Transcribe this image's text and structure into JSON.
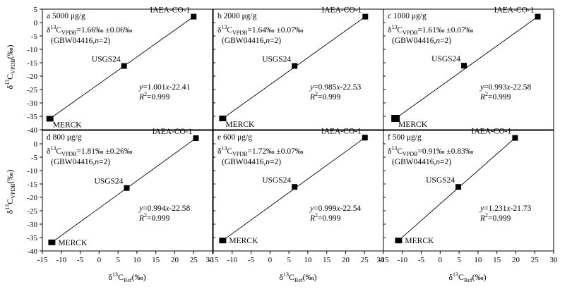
{
  "chart_data": [
    {
      "id": "a",
      "type": "scatter",
      "panel_label": "a",
      "title": "5000 μg/g",
      "points": [
        {
          "label": "IAEA-CO-1",
          "x": 25.0,
          "y": 2.2,
          "label_pos": "left-top"
        },
        {
          "label": "USGS24",
          "x": 6.6,
          "y": -16.2,
          "label_pos": "left-top"
        },
        {
          "label": "MERCK",
          "x": -13.0,
          "y": -35.9,
          "label_pos": "right-bottom"
        }
      ],
      "fit": {
        "slope": 1.001,
        "intercept": -22.41,
        "r2": 0.999,
        "x_range": [
          -13.0,
          25.0
        ]
      },
      "annotations": {
        "delta_symbol": "δ",
        "delta_sup": "13",
        "delta_c": "C",
        "delta_sub": "VPDB",
        "delta_value": "=1.66‰ ±0.06‰",
        "sample_prefix": "(GBW04416,",
        "sample_n": "n",
        "sample_suffix": "=2)",
        "eq_y": "y",
        "eq_mid": "=1.001",
        "eq_x": "x",
        "eq_tail": "-22.41",
        "r2_r": "R",
        "r2_sup": "2",
        "r2_tail": "=0.999"
      }
    },
    {
      "id": "b",
      "type": "scatter",
      "panel_label": "b",
      "title": "2000 μg/g",
      "points": [
        {
          "label": "IAEA-CO-1",
          "x": 25.2,
          "y": 2.2,
          "label_pos": "left-top"
        },
        {
          "label": "USGS24",
          "x": 6.5,
          "y": -16.2,
          "label_pos": "left-top"
        },
        {
          "label": "MERCK",
          "x": -12.5,
          "y": -35.8,
          "label_pos": "right-bottom"
        }
      ],
      "fit": {
        "slope": 0.985,
        "intercept": -22.53,
        "r2": 0.999,
        "x_range": [
          -12.5,
          25.2
        ]
      },
      "annotations": {
        "delta_symbol": "δ",
        "delta_sup": "13",
        "delta_c": "C",
        "delta_sub": "VPDB",
        "delta_value": "=1.64‰ ±0.07‰",
        "sample_prefix": "(GBW04416,",
        "sample_n": "n",
        "sample_suffix": "=2)",
        "eq_y": "y",
        "eq_mid": "=0.985",
        "eq_x": "x",
        "eq_tail": "-22.53",
        "r2_r": "R",
        "r2_sup": "2",
        "r2_tail": "=0.999"
      }
    },
    {
      "id": "c",
      "type": "scatter",
      "panel_label": "c",
      "title": "1000 μg/g",
      "points": [
        {
          "label": "IAEA-CO-1",
          "x": 25.8,
          "y": 2.2,
          "label_pos": "left-top"
        },
        {
          "label": "USGS24",
          "x": 6.3,
          "y": -16.1,
          "label_pos": "left-top"
        },
        {
          "label": "MERCK",
          "x": -11.8,
          "y": -35.8,
          "label_pos": "right-bottom"
        }
      ],
      "fit": {
        "slope": 0.993,
        "intercept": -22.58,
        "r2": 0.999,
        "x_range": [
          -11.8,
          25.8
        ]
      },
      "annotations": {
        "delta_symbol": "δ",
        "delta_sup": "13",
        "delta_c": "C",
        "delta_sub": "VPDB",
        "delta_value": "=1.61‰ ±0.07‰",
        "sample_prefix": "(GBW04416,",
        "sample_n": "n",
        "sample_suffix": "=2)",
        "eq_y": "y",
        "eq_mid": "=0.993",
        "eq_x": "x",
        "eq_tail": "-22.58",
        "r2_r": "R",
        "r2_sup": "2",
        "r2_tail": "=0.999"
      }
    },
    {
      "id": "d",
      "type": "scatter",
      "panel_label": "d",
      "title": "800 μg/g",
      "points": [
        {
          "label": "IAEA-CO-1",
          "x": 25.6,
          "y": 2.1,
          "label_pos": "left-top"
        },
        {
          "label": "USGS24",
          "x": 7.3,
          "y": -16.5,
          "label_pos": "left-top"
        },
        {
          "label": "MERCK",
          "x": -12.5,
          "y": -36.8,
          "label_pos": "right-center"
        }
      ],
      "fit": {
        "slope": 0.994,
        "intercept": -22.58,
        "r2": 0.999,
        "x_range": [
          -12.5,
          25.6
        ]
      },
      "annotations": {
        "delta_symbol": "δ",
        "delta_sup": "13",
        "delta_c": "C",
        "delta_sub": "VPDB",
        "delta_value": "=1.81‰ ±0.26‰",
        "sample_prefix": "(GBW04416,",
        "sample_n": "n",
        "sample_suffix": "=2)",
        "eq_y": "y",
        "eq_mid": "=0.994",
        "eq_x": "x",
        "eq_tail": "-22.58",
        "r2_r": "R",
        "r2_sup": "2",
        "r2_tail": "=0.999"
      }
    },
    {
      "id": "e",
      "type": "scatter",
      "panel_label": "e",
      "title": "600 μg/g",
      "points": [
        {
          "label": "IAEA-CO-1",
          "x": 25.1,
          "y": 2.3,
          "label_pos": "left-top"
        },
        {
          "label": "USGS24",
          "x": 6.5,
          "y": -16.1,
          "label_pos": "left-top"
        },
        {
          "label": "MERCK",
          "x": -12.5,
          "y": -36.1,
          "label_pos": "right-center"
        }
      ],
      "fit": {
        "slope": 0.999,
        "intercept": -22.54,
        "r2": 0.999,
        "x_range": [
          -12.5,
          25.1
        ]
      },
      "annotations": {
        "delta_symbol": "δ",
        "delta_sup": "13",
        "delta_c": "C",
        "delta_sub": "VPDB",
        "delta_value": "=1.72‰ ±0.07‰",
        "sample_prefix": "(GBW04416,",
        "sample_n": "n",
        "sample_suffix": "=2)",
        "eq_y": "y",
        "eq_mid": "=0.999",
        "eq_x": "x",
        "eq_tail": "-22.54",
        "r2_r": "R",
        "r2_sup": "2",
        "r2_tail": "=0.999"
      }
    },
    {
      "id": "f",
      "type": "scatter",
      "panel_label": "f",
      "title": "500 μg/g",
      "points": [
        {
          "label": "IAEA-CO-1",
          "x": 19.8,
          "y": 2.2,
          "label_pos": "left-top"
        },
        {
          "label": "USGS24",
          "x": 4.8,
          "y": -16.1,
          "label_pos": "left-top"
        },
        {
          "label": "MERCK",
          "x": -11.0,
          "y": -36.1,
          "label_pos": "right-center"
        }
      ],
      "fit": {
        "slope": 1.231,
        "intercept": -21.73,
        "r2": 0.999,
        "x_range": [
          -11.0,
          19.8
        ]
      },
      "annotations": {
        "delta_symbol": "δ",
        "delta_sup": "13",
        "delta_c": "C",
        "delta_sub": "VPDB",
        "delta_value": "=0.91‰ ±0.83‰",
        "sample_prefix": "(GBW04416,",
        "sample_n": "n",
        "sample_suffix": "=2)",
        "eq_y": "y",
        "eq_mid": "=1.231",
        "eq_x": "x",
        "eq_tail": "-21.73",
        "r2_r": "R",
        "r2_sup": "2",
        "r2_tail": "=0.999"
      }
    }
  ],
  "axes": {
    "xlim": [
      -15,
      30
    ],
    "ylim": [
      -40,
      5
    ],
    "x_ticks": [
      "-15",
      "-10",
      "-5",
      "0",
      "5",
      "10",
      "15",
      "20",
      "25",
      "30"
    ],
    "x_ticks_last_panel": [
      "-15",
      "-10",
      "-5",
      "0",
      "5",
      "10",
      "15",
      "20",
      "25",
      "30"
    ],
    "y_ticks": [
      "0",
      "-5",
      "-10",
      "-15",
      "-20",
      "-25",
      "-30",
      "-35",
      "-40"
    ],
    "y_ticks_top_row": [
      "5",
      "0",
      "-5",
      "-10",
      "-15",
      "-20",
      "-25",
      "-30",
      "-35",
      "-40"
    ],
    "x_label": {
      "delta": "δ",
      "sup": "13",
      "c": "C",
      "sub": "Ref",
      "unit": "(‰)"
    },
    "y_label": {
      "delta": "δ",
      "sup": "13",
      "c": "C",
      "sub": "VPDB",
      "unit": "(‰)"
    },
    "grid": false
  },
  "style": {
    "marker_color": "#000000",
    "line_color": "#000000",
    "frame_color": "#000000"
  }
}
